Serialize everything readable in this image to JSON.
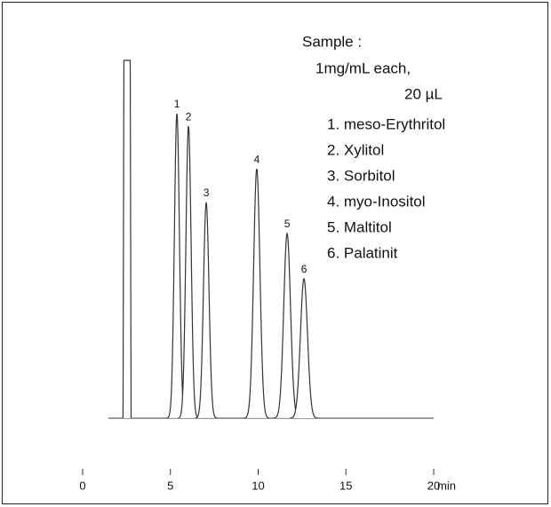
{
  "chart_data": {
    "type": "chromatogram",
    "x_label": "min",
    "xlim": [
      0,
      20
    ],
    "xticks": [
      0,
      5,
      10,
      15,
      20
    ],
    "ylim": [
      0,
      100
    ],
    "color": "#333333",
    "peaks": [
      {
        "label": null,
        "x": 2.53,
        "height": 100
      },
      {
        "label": "1",
        "x": 5.37,
        "height": 85.1
      },
      {
        "label": "2",
        "x": 6.03,
        "height": 81.6
      },
      {
        "label": "3",
        "x": 7.04,
        "height": 60.3
      },
      {
        "label": "4",
        "x": 9.92,
        "height": 69.7
      },
      {
        "label": "5",
        "x": 11.65,
        "height": 51.6
      },
      {
        "label": "6",
        "x": 12.61,
        "height": 39.0
      }
    ],
    "sample": {
      "title": "Sample :",
      "concentration": "1mg/mL each,",
      "volume": "20 µL",
      "compounds": [
        "1. meso-Erythritol",
        "2. Xylitol",
        "3. Sorbitol",
        "4. myo-Inositol",
        "5. Maltitol",
        "6. Palatinit"
      ]
    }
  }
}
